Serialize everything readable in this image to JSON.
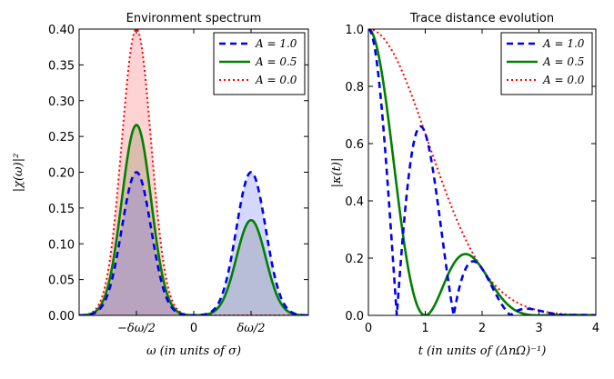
{
  "colors": {
    "a10": "#0000ee",
    "a05": "#008000",
    "a00": "#ff0000",
    "fill_blue": "#3b4cff",
    "fill_red": "#ff8080",
    "fill_green": "#6e7a3a"
  },
  "chart_data": [
    {
      "type": "area",
      "title": "Environment spectrum",
      "xlabel": "ω (in units of σ)",
      "ylabel": "|χ(ω)|²",
      "xlim": [
        -2.6,
        2.6
      ],
      "ylim": [
        0.0,
        0.4
      ],
      "xticks": [
        {
          "value": -1.3,
          "label": "−δω/2"
        },
        {
          "value": 0,
          "label": "0"
        },
        {
          "value": 1.3,
          "label": "δω/2"
        }
      ],
      "yticks": [
        {
          "value": 0.0,
          "label": "0.00"
        },
        {
          "value": 0.05,
          "label": "0.05"
        },
        {
          "value": 0.1,
          "label": "0.10"
        },
        {
          "value": 0.15,
          "label": "0.15"
        },
        {
          "value": 0.2,
          "label": "0.20"
        },
        {
          "value": 0.25,
          "label": "0.25"
        },
        {
          "value": 0.3,
          "label": "0.30"
        },
        {
          "value": 0.35,
          "label": "0.35"
        },
        {
          "value": 0.4,
          "label": "0.40"
        }
      ],
      "gaussian_sigma": 0.333,
      "center": 1.3,
      "series": [
        {
          "name": "A=1.0",
          "label": "A = 1.0",
          "style": "dashed",
          "left_peak": 0.2,
          "right_peak": 0.2
        },
        {
          "name": "A=0.5",
          "label": "A = 0.5",
          "style": "solid",
          "left_peak": 0.266,
          "right_peak": 0.133
        },
        {
          "name": "A=0.0",
          "label": "A = 0.0",
          "style": "dotted",
          "left_peak": 0.4,
          "right_peak": 0.0
        }
      ],
      "legend": "top-right"
    },
    {
      "type": "line",
      "title": "Trace distance evolution",
      "xlabel": "t (in units of (ΔnΩ)⁻¹)",
      "ylabel": "|κ(t)|",
      "xlim": [
        0,
        4
      ],
      "ylim": [
        0.0,
        1.0
      ],
      "xticks": [
        {
          "value": 0,
          "label": "0"
        },
        {
          "value": 1,
          "label": "1"
        },
        {
          "value": 2,
          "label": "2"
        },
        {
          "value": 3,
          "label": "3"
        },
        {
          "value": 4,
          "label": "4"
        }
      ],
      "yticks": [
        {
          "value": 0.0,
          "label": "0.0"
        },
        {
          "value": 0.2,
          "label": "0.2"
        },
        {
          "value": 0.4,
          "label": "0.4"
        },
        {
          "value": 0.6,
          "label": "0.6"
        },
        {
          "value": 0.8,
          "label": "0.8"
        },
        {
          "value": 1.0,
          "label": "1.0"
        }
      ],
      "model": {
        "envelope_sigma": 1.05,
        "beat_frequency": 1.0,
        "beat_phase": 3.1416
      },
      "series": [
        {
          "name": "A=1.0",
          "label": "A = 1.0",
          "style": "dashed",
          "A": 1.0
        },
        {
          "name": "A=0.5",
          "label": "A = 0.5",
          "style": "solid",
          "A": 0.5
        },
        {
          "name": "A=0.0",
          "label": "A = 0.0",
          "style": "dotted",
          "A": 0.0
        }
      ],
      "legend": "top-right"
    }
  ]
}
